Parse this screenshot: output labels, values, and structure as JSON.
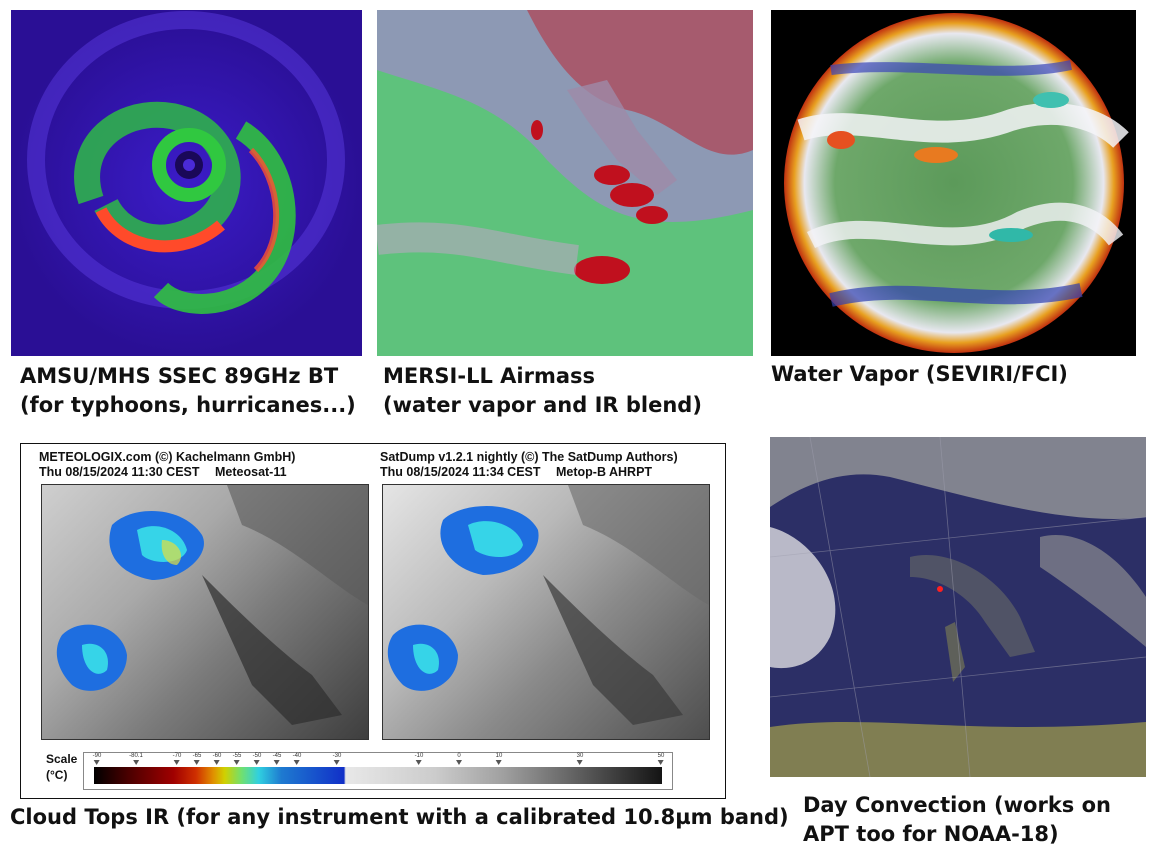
{
  "panels": [
    {
      "id": "amsu",
      "caption_lines": [
        "AMSU/MHS SSEC 89GHz BT",
        "(for typhoons, hurricanes...)"
      ]
    },
    {
      "id": "mersi",
      "caption_lines": [
        "MERSI-LL Airmass",
        "(water vapor and IR blend)"
      ]
    },
    {
      "id": "water_vapor",
      "caption_lines": [
        "Water Vapor (SEVIRI/FCI)"
      ]
    },
    {
      "id": "cloud_tops",
      "caption_lines": [
        "Cloud Tops IR (for any instrument with a calibrated 10.8µm band)"
      ],
      "left_header": {
        "line1": "METEOLOGIX.com  (©) Kachelmann GmbH)",
        "date": "Thu 08/15/2024 11:30 CEST",
        "satellite": "Meteosat-11"
      },
      "right_header": {
        "line1": "SatDump v1.2.1 nightly (©) The SatDump Authors)",
        "date": "Thu 08/15/2024 11:34 CEST",
        "satellite": "Metop-B AHRPT"
      },
      "scale_title": "Scale",
      "scale_unit": "(°C)",
      "scale_ticks": [
        "-90",
        "-80.1",
        "-70",
        "-65",
        "-60",
        "-55",
        "-50",
        "-45",
        "-40",
        "-30",
        "-10",
        "0",
        "10",
        "30",
        "50"
      ]
    },
    {
      "id": "day_convection",
      "caption_lines": [
        "Day Convection (works on",
        "APT too for NOAA-18)"
      ]
    }
  ]
}
